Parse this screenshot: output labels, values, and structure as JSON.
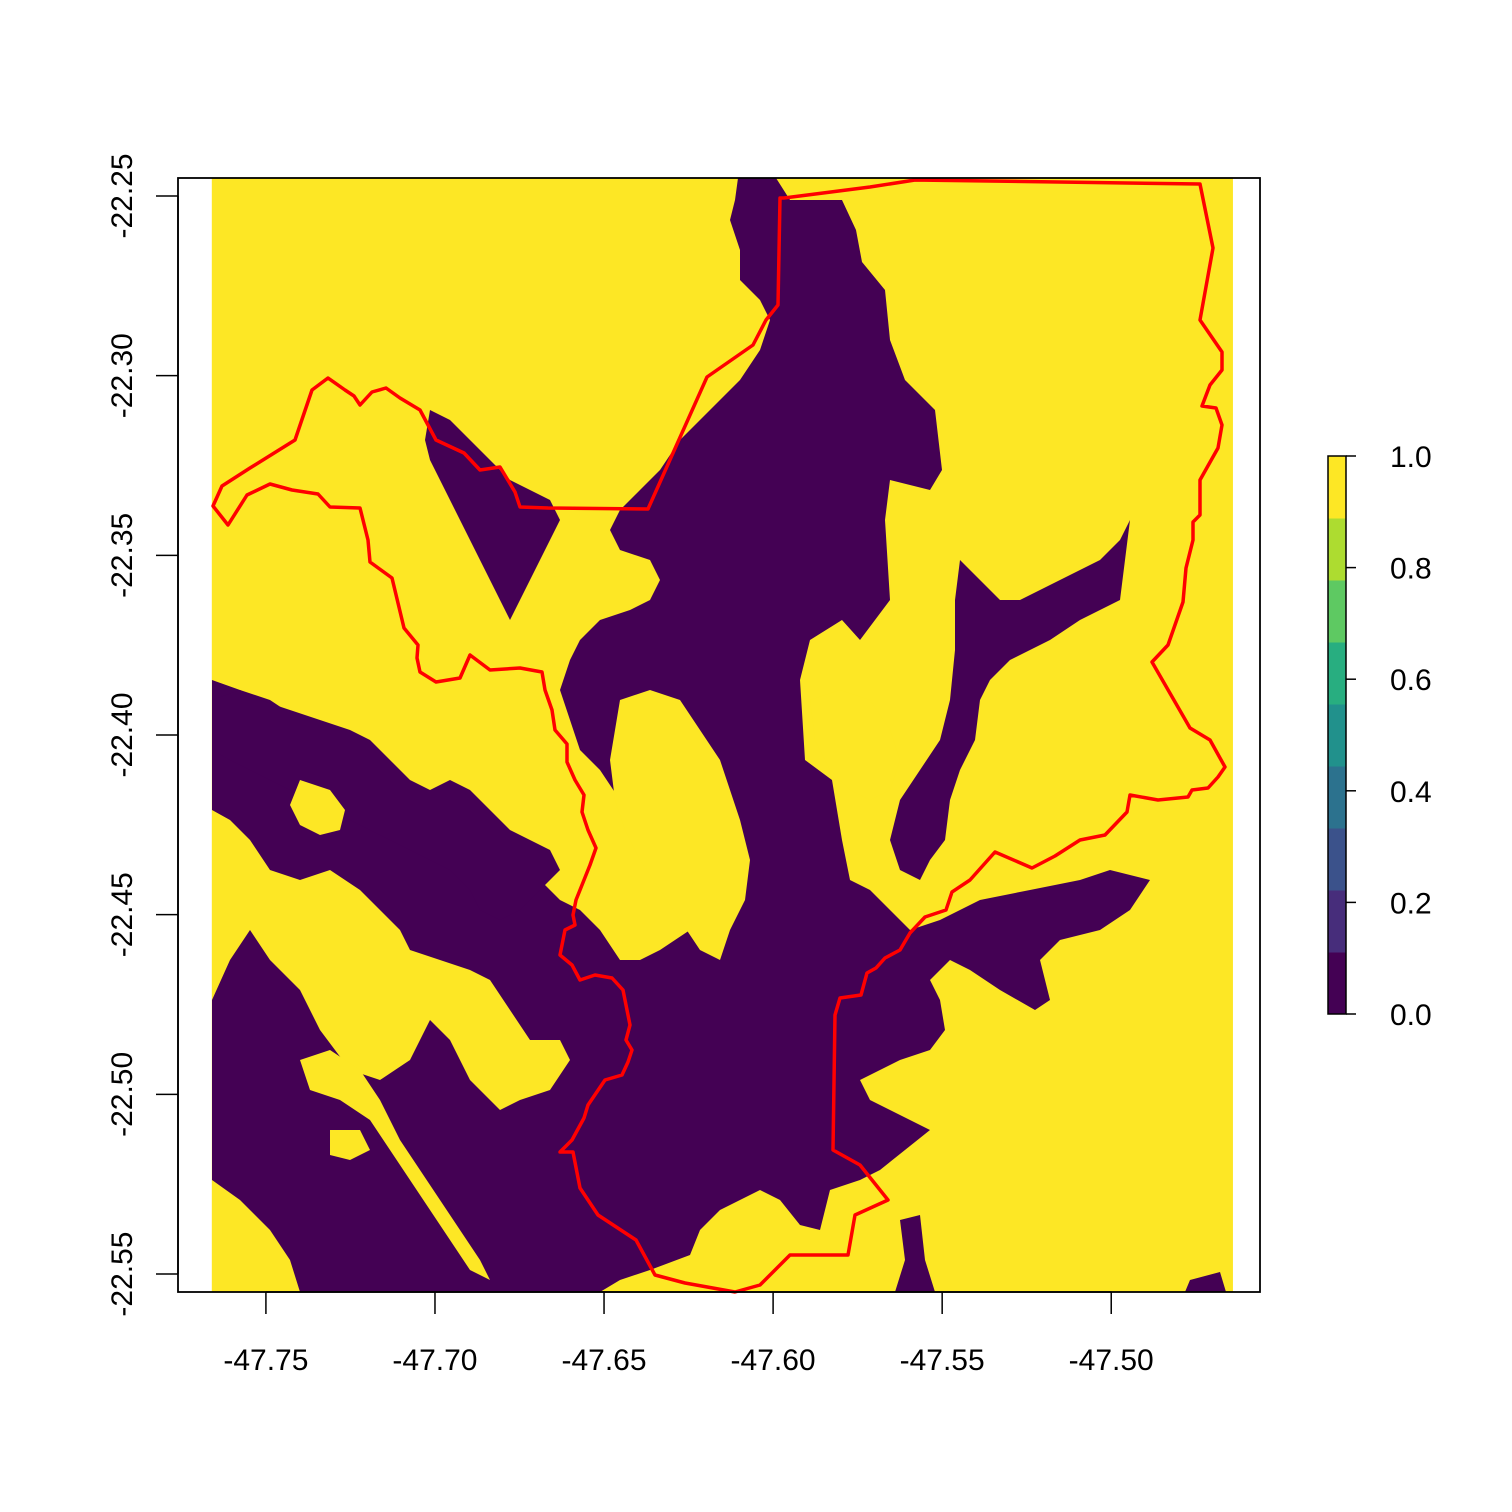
{
  "map": {
    "type": "raster",
    "x_range": [
      -47.776,
      -47.456
    ],
    "y_range": [
      -22.555,
      -22.245
    ],
    "x_ticks": [
      "-47.75",
      "-47.70",
      "-47.65",
      "-47.60",
      "-47.55",
      "-47.50"
    ],
    "y_ticks": [
      "-22.25",
      "-22.30",
      "-22.35",
      "-22.40",
      "-22.45",
      "-22.50",
      "-22.55"
    ],
    "raster_extent_lon": [
      -47.766,
      -47.464
    ],
    "colors": {
      "zero": "#440154",
      "one": "#fde725",
      "boundary": "#ff0000",
      "frame": "#000000"
    }
  },
  "legend": {
    "ticks": [
      "0.0",
      "0.2",
      "0.4",
      "0.6",
      "0.8",
      "1.0"
    ],
    "range": [
      0,
      1
    ],
    "bins": [
      "#440154",
      "#472d7b",
      "#3b528b",
      "#2c728e",
      "#21918c",
      "#28ae80",
      "#5ec962",
      "#addc30",
      "#fde725"
    ]
  }
}
